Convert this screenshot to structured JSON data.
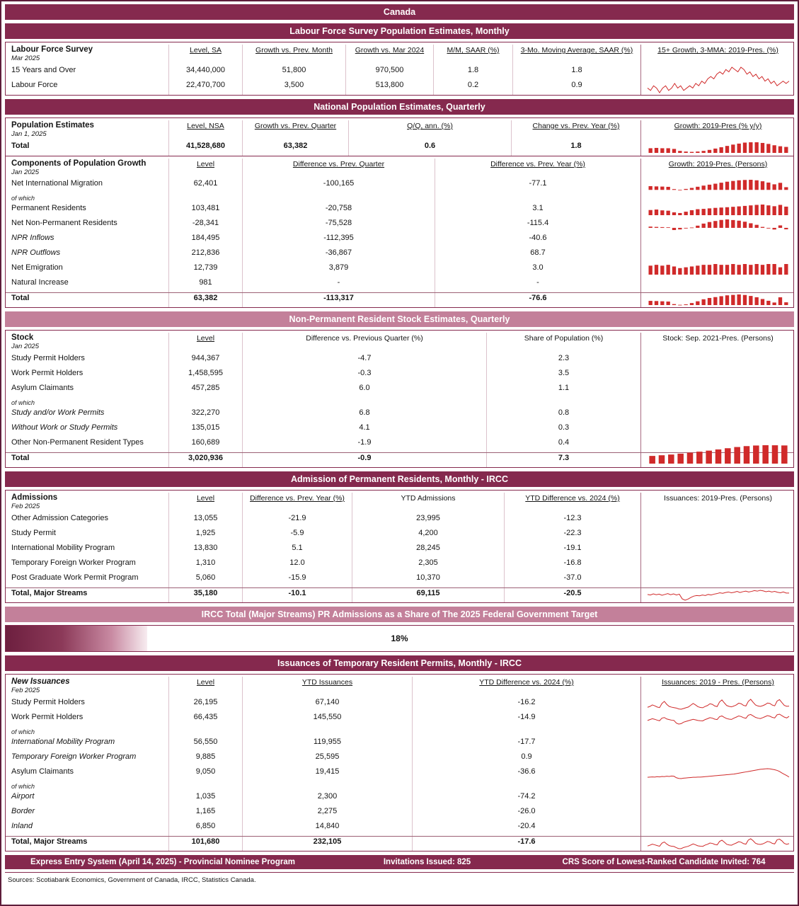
{
  "page": {
    "title": "Canada",
    "sources": "Sources: Scotiabank Economics, Government of Canada, IRCC, Statistics Canada."
  },
  "colors": {
    "dark_bar": "#85294e",
    "light_bar": "#c3809a",
    "chart_red": "#d02a2a"
  },
  "lfs": {
    "section_title": "Labour Force Survey Population Estimates, Monthly",
    "group_label": "Labour Force Survey",
    "group_date": "Mar 2025",
    "headers": [
      "Level, SA",
      "Growth vs. Prev. Month",
      "Growth vs. Mar 2024",
      "M/M, SAAR (%)",
      "3-Mo. Moving Average, SAAR (%)"
    ],
    "chart_header": "15+ Growth, 3-MMA: 2019-Pres. (%)",
    "rows": [
      {
        "label": "15 Years and Over",
        "cells": [
          "34,440,000",
          "51,800",
          "970,500",
          "1.8",
          "1.8"
        ]
      },
      {
        "label": "Labour Force",
        "cells": [
          "22,470,700",
          "3,500",
          "513,800",
          "0.2",
          "0.9"
        ]
      }
    ],
    "chart": {
      "type": "line",
      "values": [
        1.5,
        1.4,
        1.6,
        1.5,
        1.3,
        1.5,
        1.6,
        1.4,
        1.5,
        1.7,
        1.5,
        1.6,
        1.4,
        1.5,
        1.6,
        1.5,
        1.7,
        1.6,
        1.8,
        1.7,
        1.9,
        2.0,
        1.9,
        2.1,
        2.2,
        2.1,
        2.3,
        2.2,
        2.4,
        2.3,
        2.2,
        2.4,
        2.3,
        2.1,
        2.2,
        2.0,
        2.1,
        1.9,
        2.0,
        1.8,
        1.9,
        1.7,
        1.8,
        1.6,
        1.7,
        1.8,
        1.7,
        1.8
      ]
    }
  },
  "natpop": {
    "section_title": "National Population Estimates, Quarterly",
    "est": {
      "group_label": "Population Estimates",
      "group_date": "Jan 1, 2025",
      "headers": [
        "Level, NSA",
        "Growth vs. Prev. Quarter",
        "Q/Q, ann. (%)",
        "Change vs. Prev. Year (%)"
      ],
      "chart_header": "Growth: 2019-Pres (% y/y)",
      "total": {
        "label": "Total",
        "cells": [
          "41,528,680",
          "63,382",
          "0.6",
          "1.8"
        ]
      },
      "chart": {
        "type": "bar",
        "values": [
          1.4,
          1.5,
          1.4,
          1.4,
          1.2,
          0.6,
          0.4,
          0.3,
          0.4,
          0.6,
          0.9,
          1.3,
          1.7,
          2.1,
          2.5,
          2.8,
          3.1,
          3.2,
          3.2,
          3.0,
          2.7,
          2.3,
          2.0,
          1.8
        ]
      }
    },
    "comp": {
      "group_label": "Components of Population Growth",
      "group_date": "Jan 2025",
      "headers": [
        "Level",
        "Difference vs. Prev. Quarter",
        "Difference vs. Prev. Year (%)"
      ],
      "chart_header": "Growth: 2019-Pres. (Persons)",
      "note_label": "of which",
      "rows": [
        {
          "label": "Net International Migration",
          "cells": [
            "62,401",
            "-100,165",
            "-77.1"
          ],
          "chart": {
            "type": "bar",
            "values": [
              86,
              80,
              76,
              70,
              18,
              -12,
              22,
              45,
              72,
              98,
              120,
              142,
              165,
              188,
              205,
              220,
              228,
              232,
              220,
              198,
              168,
              128,
              162,
              62
            ]
          }
        },
        {
          "label": "Permanent Residents",
          "cells": [
            "103,481",
            "-20,758",
            "3.1"
          ],
          "chart": {
            "type": "bar",
            "values": [
              62,
              68,
              58,
              54,
              34,
              26,
              42,
              60,
              72,
              76,
              82,
              88,
              92,
              96,
              101,
              106,
              112,
              118,
              124,
              128,
              118,
              108,
              124,
              103
            ]
          }
        },
        {
          "label": "Net Non-Permanent Residents",
          "cells": [
            "-28,341",
            "-75,528",
            "-115.4"
          ],
          "chart": {
            "type": "bar",
            "values": [
              24,
              18,
              14,
              10,
              -42,
              -30,
              -12,
              6,
              42,
              82,
              112,
              132,
              152,
              162,
              150,
              138,
              118,
              88,
              58,
              18,
              -12,
              -32,
              47,
              -28
            ]
          }
        },
        {
          "label": "NPR Inflows",
          "cells": [
            "184,495",
            "-112,395",
            "-40.6"
          ]
        },
        {
          "label": "NPR Outflows",
          "cells": [
            "212,836",
            "-36,867",
            "68.7"
          ]
        },
        {
          "label": "Net Emigration",
          "cells": [
            "12,739",
            "3,879",
            "3.0"
          ],
          "chart": {
            "type": "bar",
            "values": [
              11,
              12,
              11,
              12,
              10,
              8,
              9,
              10,
              11,
              12,
              12,
              13,
              12,
              12,
              13,
              12,
              13,
              12,
              13,
              12,
              13,
              13,
              9,
              13
            ]
          }
        },
        {
          "label": "Natural Increase",
          "cells": [
            "981",
            "-",
            "-"
          ]
        },
        {
          "label": "Total",
          "cells": [
            "63,382",
            "-113,317",
            "-76.6"
          ],
          "chart": {
            "type": "bar",
            "values": [
              96,
              92,
              86,
              80,
              22,
              6,
              16,
              46,
              86,
              132,
              162,
              182,
              202,
              222,
              232,
              242,
              230,
              208,
              178,
              138,
              98,
              58,
              177,
              63
            ]
          }
        }
      ]
    }
  },
  "npr": {
    "section_title": "Non-Permanent Resident Stock Estimates, Quarterly",
    "group_label": "Stock",
    "group_date": "Jan 2025",
    "headers": [
      "Level",
      "Difference vs. Previous Quarter (%)",
      "Share of Population (%)"
    ],
    "chart_header": "Stock: Sep. 2021-Pres. (Persons)",
    "note_label": "of which",
    "rows": [
      {
        "label": "Study Permit Holders",
        "cells": [
          "944,367",
          "-4.7",
          "2.3"
        ]
      },
      {
        "label": "Work Permit Holders",
        "cells": [
          "1,458,595",
          "-0.3",
          "3.5"
        ]
      },
      {
        "label": "Asylum Claimants",
        "cells": [
          "457,285",
          "6.0",
          "1.1"
        ]
      },
      {
        "label": "Study and/or Work Permits",
        "cells": [
          "322,270",
          "6.8",
          "0.8"
        ]
      },
      {
        "label": "Without Work or Study Permits",
        "cells": [
          "135,015",
          "4.1",
          "0.3"
        ]
      },
      {
        "label": "Other Non-Permanent Resident Types",
        "cells": [
          "160,689",
          "-1.9",
          "0.4"
        ]
      },
      {
        "label": "Total",
        "cells": [
          "3,020,936",
          "-0.9",
          "7.3"
        ],
        "chart": {
          "type": "bar",
          "values": [
            1280,
            1390,
            1510,
            1660,
            1820,
            1990,
            2160,
            2360,
            2560,
            2760,
            2910,
            3010,
            3060,
            3050,
            3021
          ]
        }
      }
    ]
  },
  "adm": {
    "section_title": "Admission of Permanent Residents, Monthly - IRCC",
    "group_label": "Admissions",
    "group_date": "Feb 2025",
    "headers": [
      "Level",
      "Difference vs. Prev. Year (%)",
      "YTD Admissions",
      "YTD Difference vs. 2024 (%)"
    ],
    "chart_header": "Issuances: 2019-Pres. (Persons)",
    "rows": [
      {
        "label": "Other Admission Categories",
        "cells": [
          "13,055",
          "-21.9",
          "23,995",
          "-12.3"
        ]
      },
      {
        "label": "Study Permit",
        "cells": [
          "1,925",
          "-5.9",
          "4,200",
          "-22.3"
        ]
      },
      {
        "label": "International Mobility Program",
        "cells": [
          "13,830",
          "5.1",
          "28,245",
          "-19.1"
        ]
      },
      {
        "label": "Temporary Foreign Worker Program",
        "cells": [
          "1,310",
          "12.0",
          "2,305",
          "-16.8"
        ]
      },
      {
        "label": "Post Graduate Work Permit Program",
        "cells": [
          "5,060",
          "-15.9",
          "10,370",
          "-37.0"
        ]
      },
      {
        "label": "Total, Major Streams",
        "cells": [
          "35,180",
          "-10.1",
          "69,115",
          "-20.5"
        ],
        "chart": {
          "type": "line",
          "values": [
            30,
            28,
            32,
            29,
            31,
            27,
            30,
            33,
            29,
            32,
            28,
            31,
            14,
            9,
            13,
            19,
            24,
            26,
            25,
            28,
            26,
            30,
            28,
            31,
            33,
            36,
            34,
            37,
            39,
            36,
            38,
            41,
            37,
            40,
            42,
            39,
            41,
            44,
            42,
            45,
            43,
            40,
            42,
            39,
            41,
            38,
            36,
            39,
            35,
            35
          ]
        }
      }
    ]
  },
  "gauge": {
    "section_title": "IRCC Total (Major Streams) PR Admissions as a Share of The 2025 Federal Government Target",
    "value_label": "18%",
    "percent": 18
  },
  "iss": {
    "section_title": "Issuances of Temporary Resident Permits, Monthly - IRCC",
    "group_label": "New Issuances",
    "group_date": "Feb 2025",
    "headers": [
      "Level",
      "YTD Issuances",
      "YTD Difference vs. 2024 (%)"
    ],
    "chart_header": "Issuances: 2019 - Pres. (Persons)",
    "note_label": "of which",
    "rows": [
      {
        "label": "Study Permit Holders",
        "cells": [
          "26,195",
          "67,140",
          "-16.2"
        ],
        "chart": {
          "type": "line",
          "values": [
            18,
            24,
            34,
            28,
            20,
            16,
            44,
            58,
            38,
            24,
            19,
            16,
            13,
            7,
            5,
            10,
            15,
            20,
            32,
            44,
            34,
            22,
            17,
            15,
            24,
            30,
            42,
            38,
            27,
            23,
            54,
            68,
            48,
            30,
            24,
            21,
            27,
            34,
            46,
            42,
            31,
            27,
            58,
            72,
            52,
            34,
            27,
            24,
            29,
            36,
            47,
            44,
            33,
            28,
            60,
            70,
            50,
            31,
            25,
            26
          ]
        }
      },
      {
        "label": "Work Permit Holders",
        "cells": [
          "66,435",
          "145,550",
          "-14.9"
        ],
        "chart": {
          "type": "line",
          "values": [
            38,
            44,
            50,
            46,
            40,
            36,
            54,
            58,
            48,
            44,
            40,
            38,
            20,
            13,
            16,
            26,
            31,
            36,
            41,
            46,
            42,
            38,
            36,
            35,
            44,
            50,
            57,
            54,
            47,
            44,
            64,
            69,
            59,
            51,
            47,
            45,
            54,
            61,
            69,
            65,
            57,
            53,
            74,
            79,
            69,
            59,
            54,
            51,
            57,
            64,
            71,
            67,
            59,
            55,
            77,
            81,
            71,
            61,
            55,
            66
          ]
        }
      },
      {
        "label": "International Mobility Program",
        "cells": [
          "56,550",
          "119,955",
          "-17.7"
        ]
      },
      {
        "label": "Temporary Foreign Worker Program",
        "cells": [
          "9,885",
          "25,595",
          "0.9"
        ]
      },
      {
        "label": "Asylum Claimants",
        "cells": [
          "9,050",
          "19,415",
          "-36.6"
        ],
        "chart": {
          "type": "line",
          "values": [
            8,
            9,
            10,
            9,
            11,
            10,
            12,
            11,
            13,
            12,
            14,
            13,
            6,
            3,
            2,
            4,
            5,
            6,
            7,
            8,
            8,
            9,
            9,
            10,
            11,
            12,
            13,
            14,
            15,
            16,
            17,
            18,
            19,
            20,
            21,
            22,
            23,
            25,
            27,
            29,
            31,
            33,
            35,
            37,
            39,
            41,
            43,
            45,
            46,
            47,
            48,
            47,
            45,
            43,
            40,
            35,
            28,
            22,
            16,
            9
          ]
        }
      },
      {
        "label": "Airport",
        "cells": [
          "1,035",
          "2,300",
          "-74.2"
        ]
      },
      {
        "label": "Border",
        "cells": [
          "1,165",
          "2,275",
          "-26.0"
        ]
      },
      {
        "label": "Inland",
        "cells": [
          "6,850",
          "14,840",
          "-20.4"
        ]
      },
      {
        "label": "Total, Major Streams",
        "cells": [
          "101,680",
          "232,105",
          "-17.6"
        ],
        "chart": {
          "type": "line",
          "values": [
            66,
            78,
            94,
            84,
            72,
            62,
            110,
            128,
            96,
            72,
            62,
            58,
            40,
            24,
            24,
            42,
            52,
            62,
            80,
            98,
            84,
            68,
            62,
            60,
            80,
            92,
            112,
            106,
            90,
            82,
            136,
            156,
            126,
            92,
            82,
            78,
            96,
            112,
            132,
            124,
            102,
            94,
            158,
            178,
            148,
            108,
            94,
            90,
            98,
            116,
            136,
            128,
            106,
            98,
            162,
            172,
            146,
            106,
            92,
            102
          ]
        }
      }
    ]
  },
  "express": {
    "left": "Express Entry System (April 14, 2025) - Provincial Nominee Program",
    "center": "Invitations Issued: 825",
    "right": "CRS Score of Lowest-Ranked Candidate Invited: 764"
  }
}
